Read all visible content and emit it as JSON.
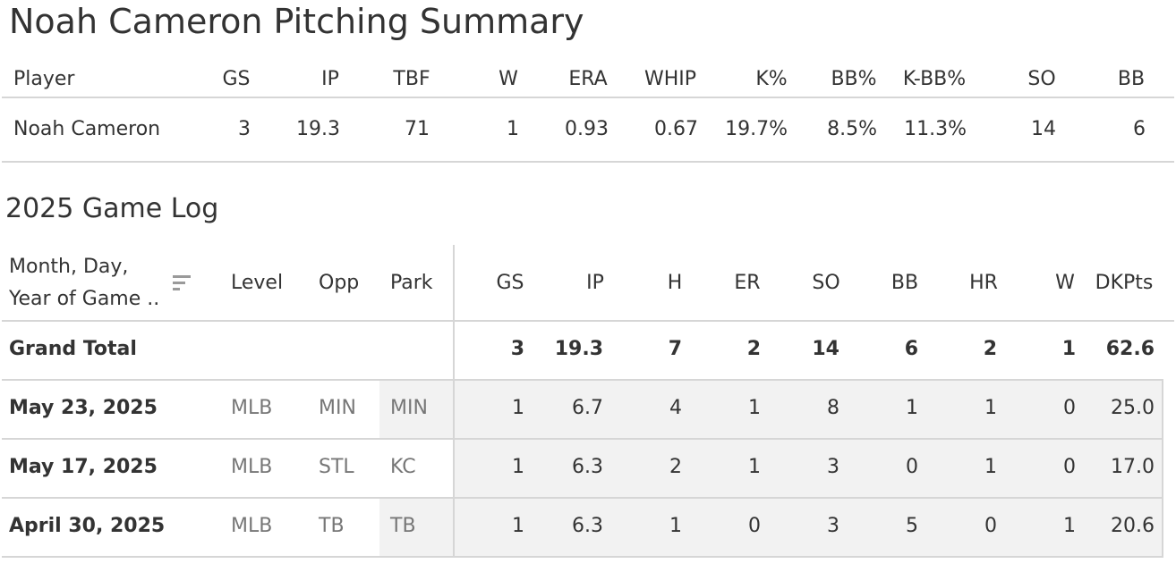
{
  "title": "Noah Cameron Pitching Summary",
  "summary": {
    "headers": [
      "Player",
      "GS",
      "IP",
      "TBF",
      "W",
      "ERA",
      "WHIP",
      "K%",
      "BB%",
      "K-BB%",
      "SO",
      "BB"
    ],
    "row": [
      "Noah Cameron",
      "3",
      "19.3",
      "71",
      "1",
      "0.93",
      "0.67",
      "19.7%",
      "8.5%",
      "11.3%",
      "14",
      "6"
    ]
  },
  "game_log": {
    "title": "2025 Game Log",
    "date_header_line1": "Month, Day,",
    "date_header_line2": "Year of Game ..",
    "headers": [
      "Level",
      "Opp",
      "Park",
      "GS",
      "IP",
      "H",
      "ER",
      "SO",
      "BB",
      "HR",
      "W",
      "DKPts"
    ],
    "total": {
      "label": "Grand Total",
      "values": [
        "3",
        "19.3",
        "7",
        "2",
        "14",
        "6",
        "2",
        "1",
        "62.6"
      ]
    },
    "rows": [
      {
        "date": "May 23, 2025",
        "level": "MLB",
        "opp": "MIN",
        "park": "MIN",
        "values": [
          "1",
          "6.7",
          "4",
          "1",
          "8",
          "1",
          "1",
          "0",
          "25.0"
        ]
      },
      {
        "date": "May 17, 2025",
        "level": "MLB",
        "opp": "STL",
        "park": "KC",
        "values": [
          "1",
          "6.3",
          "2",
          "1",
          "3",
          "0",
          "1",
          "0",
          "17.0"
        ]
      },
      {
        "date": "April 30, 2025",
        "level": "MLB",
        "opp": "TB",
        "park": "TB",
        "values": [
          "1",
          "6.3",
          "1",
          "0",
          "3",
          "5",
          "0",
          "1",
          "20.6"
        ]
      }
    ]
  },
  "icons": {
    "sort": "sort-descending-icon"
  },
  "colors": {
    "text": "#333333",
    "dim_text": "#777777",
    "divider": "#d6d6d6",
    "shade": "#f2f2f2"
  }
}
